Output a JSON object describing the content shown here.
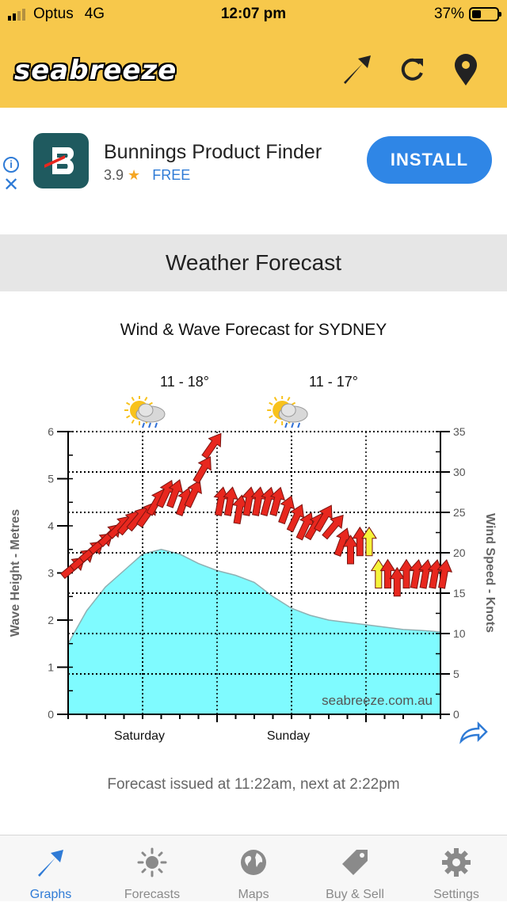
{
  "status_bar": {
    "carrier": "Optus",
    "network": "4G",
    "time": "12:07 pm",
    "battery": "37%",
    "battery_level": 0.37
  },
  "header": {
    "logo_text": "seabreeze",
    "icons": [
      "arrow-icon",
      "refresh-icon",
      "location-pin-icon"
    ]
  },
  "ad": {
    "app_name": "Bunnings Product Finder",
    "rating": "3.9",
    "price": "FREE",
    "install_label": "INSTALL"
  },
  "page": {
    "section_title": "Weather Forecast",
    "issued_text": "Forecast issued at 11:22am, next at 2:22pm"
  },
  "days": [
    {
      "name": "Saturday",
      "temp": "11 - 18°",
      "icon": "sun-cloud-rain-icon"
    },
    {
      "name": "Sunday",
      "temp": "11 - 17°",
      "icon": "sun-cloud-rain-icon"
    }
  ],
  "chart_data": {
    "type": "area",
    "title": "Wind & Wave Forecast for SYDNEY",
    "ylabel_left": "Wave Height - Metres",
    "ylabel_right": "Wind Speed - Knots",
    "watermark": "seabreeze.com.au",
    "ylim_left": [
      0,
      6
    ],
    "ylim_right": [
      0,
      35
    ],
    "yticks_left": [
      "0",
      "1",
      "2",
      "3",
      "4",
      "5",
      "6"
    ],
    "yticks_right": [
      "0",
      "5",
      "10",
      "15",
      "20",
      "25",
      "30",
      "35"
    ],
    "x_categories": [
      "Saturday",
      "Sunday"
    ],
    "grid": true,
    "wave_height": {
      "x_hours": [
        0,
        3,
        6,
        9,
        12,
        15,
        18,
        21,
        24,
        27,
        30,
        33,
        36,
        39,
        42,
        45,
        48,
        51,
        54,
        57,
        60
      ],
      "values": [
        1.5,
        2.2,
        2.7,
        3.05,
        3.4,
        3.5,
        3.4,
        3.2,
        3.05,
        2.95,
        2.8,
        2.5,
        2.25,
        2.1,
        2.0,
        1.95,
        1.9,
        1.85,
        1.8,
        1.78,
        1.75
      ]
    },
    "wind": {
      "hours": [
        0,
        1.5,
        3,
        4.5,
        6,
        7.5,
        9,
        10.5,
        12,
        13.5,
        15,
        16.5,
        18,
        19.5,
        21,
        22.5,
        24,
        25.5,
        27,
        28.5,
        30,
        31.5,
        33,
        34.5,
        36,
        37.5,
        39,
        40.5,
        42,
        43.5,
        45,
        46.5,
        48,
        49.5,
        51,
        52.5,
        54,
        55.5,
        57,
        58.5,
        60
      ],
      "speed_knots": [
        18,
        19,
        20,
        21,
        22,
        23,
        23.5,
        24,
        24.5,
        26,
        27,
        27,
        26,
        27,
        30,
        33,
        26,
        26,
        25,
        26,
        26,
        26,
        26,
        25,
        24,
        23,
        23,
        24,
        23,
        21,
        20,
        21,
        21,
        17,
        17,
        16,
        17,
        17,
        17,
        17,
        17
      ],
      "direction_deg": [
        50,
        50,
        50,
        50,
        45,
        45,
        40,
        40,
        35,
        30,
        25,
        20,
        20,
        25,
        30,
        35,
        10,
        10,
        10,
        10,
        10,
        15,
        15,
        20,
        25,
        25,
        30,
        30,
        40,
        20,
        0,
        0,
        0,
        0,
        0,
        0,
        0,
        10,
        10,
        10,
        10
      ],
      "highlight_yellow_hours": [
        48,
        49.5
      ]
    }
  },
  "tabs": [
    {
      "label": "Graphs",
      "icon": "arrow-icon",
      "active": true
    },
    {
      "label": "Forecasts",
      "icon": "sun-icon",
      "active": false
    },
    {
      "label": "Maps",
      "icon": "globe-icon",
      "active": false
    },
    {
      "label": "Buy & Sell",
      "icon": "tag-icon",
      "active": false
    },
    {
      "label": "Settings",
      "icon": "gear-icon",
      "active": false
    }
  ],
  "colors": {
    "header_bg": "#f7c84b",
    "accent": "#2f7bd6",
    "wave_fill": "#7ffbff",
    "wind_arrow": "#e8271e",
    "wind_arrow_light": "#f5f43a"
  }
}
